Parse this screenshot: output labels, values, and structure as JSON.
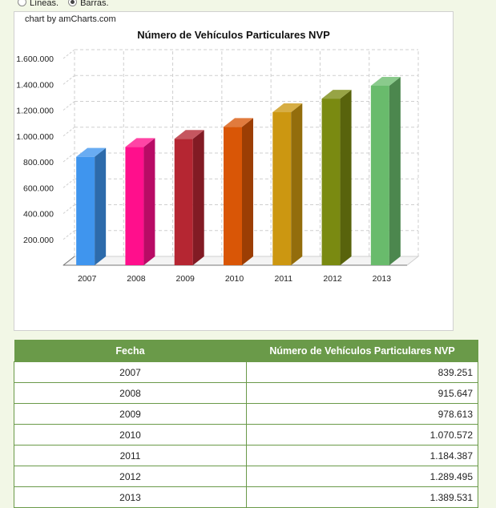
{
  "view_options": {
    "lines_label": "Líneas.",
    "bars_label": "Barras.",
    "selected": "bars"
  },
  "credit": "chart by amCharts.com",
  "chart_data": {
    "type": "bar",
    "title": "Número de Vehículos Particulares NVP",
    "categories": [
      "2007",
      "2008",
      "2009",
      "2010",
      "2011",
      "2012",
      "2013"
    ],
    "values": [
      839251,
      915647,
      978613,
      1070572,
      1184387,
      1289495,
      1389531
    ],
    "colors": [
      "#3f95ee",
      "#ff0f8c",
      "#b52632",
      "#d95606",
      "#cc9711",
      "#7a8a11",
      "#69bb6c"
    ],
    "yticks": [
      "200.000",
      "400.000",
      "600.000",
      "800.000",
      "1.000.000",
      "1.200.000",
      "1.400.000",
      "1.600.000"
    ],
    "ylim": [
      0,
      1600000
    ],
    "grid": true,
    "style": "3d"
  },
  "table": {
    "headers": [
      "Fecha",
      "Número de Vehículos Particulares NVP"
    ],
    "rows": [
      [
        "2007",
        "839.251"
      ],
      [
        "2008",
        "915.647"
      ],
      [
        "2009",
        "978.613"
      ],
      [
        "2010",
        "1.070.572"
      ],
      [
        "2011",
        "1.184.387"
      ],
      [
        "2012",
        "1.289.495"
      ],
      [
        "2013",
        "1.389.531"
      ]
    ]
  }
}
